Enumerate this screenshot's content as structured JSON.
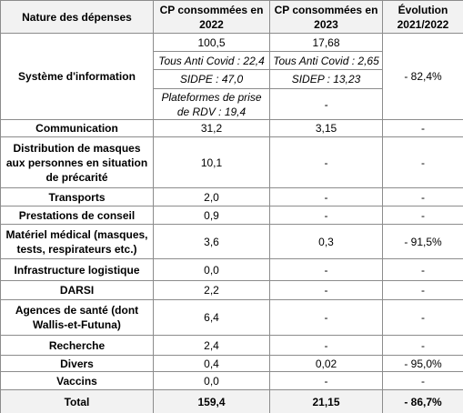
{
  "table": {
    "header": [
      "Nature des dépenses",
      "CP consommées en 2022",
      "CP consommées en 2023",
      "Évolution 2021/2022"
    ],
    "si": {
      "label": "Système d'information",
      "col2022": [
        "100,5",
        "Tous Anti Covid : 22,4",
        "SIDPE : 47,0",
        "Plateformes de prise de RDV : 19,4"
      ],
      "col2023": [
        "17,68",
        "Tous Anti Covid : 2,65",
        "SIDEP : 13,23",
        "-"
      ],
      "evolution": "- 82,4%"
    },
    "rows": [
      [
        "Communication",
        "31,2",
        "3,15",
        "-"
      ],
      [
        "Distribution de masques aux personnes en situation de précarité",
        "10,1",
        "-",
        "-"
      ],
      [
        "Transports",
        "2,0",
        "-",
        "-"
      ],
      [
        "Prestations de conseil",
        "0,9",
        "-",
        "-"
      ],
      [
        "Matériel médical (masques, tests, respirateurs etc.)",
        "3,6",
        "0,3",
        "- 91,5%"
      ],
      [
        "Infrastructure logistique",
        "0,0",
        "-",
        "-"
      ],
      [
        "DARSI",
        "2,2",
        "-",
        "-"
      ],
      [
        "Agences de santé (dont Wallis-et-Futuna)",
        "6,4",
        "-",
        "-"
      ],
      [
        "Recherche",
        "2,4",
        "-",
        "-"
      ],
      [
        "Divers",
        "0,4",
        "0,02",
        "- 95,0%"
      ],
      [
        "Vaccins",
        "0,0",
        "-",
        "-"
      ]
    ],
    "total": [
      "Total",
      "159,4",
      "21,15",
      "- 86,7%"
    ]
  }
}
